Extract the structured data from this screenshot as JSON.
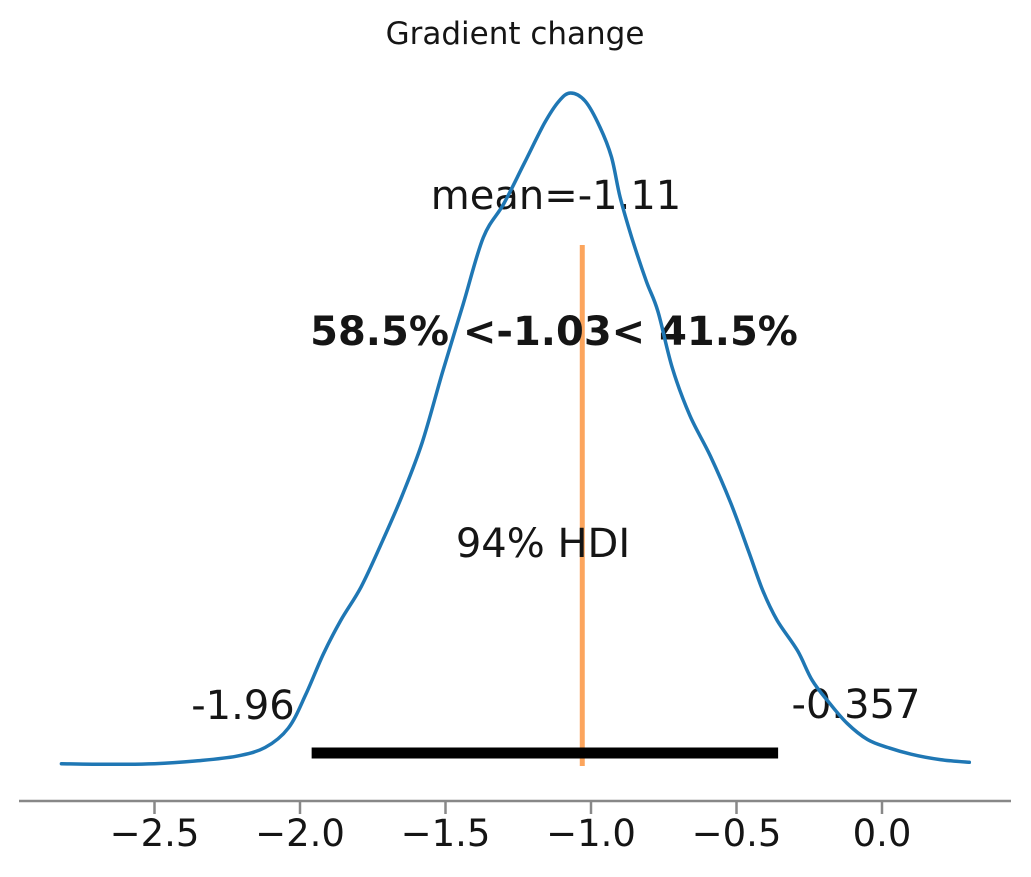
{
  "chart_data": {
    "type": "area",
    "kind": "posterior-kde",
    "title": "Gradient change",
    "mean": -1.11,
    "labels": {
      "mean": "mean=-1.11",
      "hdi": "94% HDI",
      "hdi_lower": "-1.96",
      "hdi_upper": "-0.357",
      "ref_val": "58.5% <-1.03< 41.5%"
    },
    "hdi": {
      "prob": 0.94,
      "lower": -1.96,
      "upper": -0.357
    },
    "ref_val": {
      "value": -1.03,
      "pct_below": 58.5,
      "pct_above": 41.5
    },
    "x_axis": {
      "tick_values": [
        -2.5,
        -2.0,
        -1.5,
        -1.0,
        -0.5,
        0.0
      ],
      "tick_labels": [
        "−2.5",
        "−2.0",
        "−1.5",
        "−1.0",
        "−0.5",
        "0.0"
      ],
      "range": [
        -2.96,
        0.45
      ],
      "grid": false
    },
    "ylim": [
      0,
      1.08
    ],
    "legend": "none",
    "curve": {
      "x": [
        -2.82,
        -2.66,
        -2.5,
        -2.36,
        -2.22,
        -2.12,
        -2.04,
        -1.98,
        -1.92,
        -1.86,
        -1.79,
        -1.72,
        -1.65,
        -1.58,
        -1.51,
        -1.44,
        -1.37,
        -1.3,
        -1.23,
        -1.16,
        -1.11,
        -1.07,
        -1.02,
        -0.97,
        -0.93,
        -0.9,
        -0.86,
        -0.81,
        -0.77,
        -0.72,
        -0.66,
        -0.59,
        -0.52,
        -0.46,
        -0.41,
        -0.36,
        -0.29,
        -0.24,
        -0.18,
        -0.12,
        -0.05,
        0.02,
        0.1,
        0.2,
        0.3
      ],
      "density_normalized": [
        0.002,
        0.001,
        0.002,
        0.006,
        0.013,
        0.026,
        0.055,
        0.105,
        0.165,
        0.215,
        0.265,
        0.33,
        0.4,
        0.48,
        0.585,
        0.685,
        0.785,
        0.835,
        0.895,
        0.955,
        0.988,
        1.0,
        0.988,
        0.95,
        0.905,
        0.845,
        0.785,
        0.72,
        0.675,
        0.59,
        0.52,
        0.46,
        0.39,
        0.32,
        0.26,
        0.215,
        0.17,
        0.126,
        0.092,
        0.062,
        0.038,
        0.026,
        0.016,
        0.008,
        0.004
      ]
    },
    "colors": {
      "kde_line": "#1f77b4",
      "ref_line": "#fca55d",
      "ref_text": "#ff7f0e",
      "hdi_bar": "#000000",
      "axis": "#888888",
      "text": "#151515"
    }
  }
}
